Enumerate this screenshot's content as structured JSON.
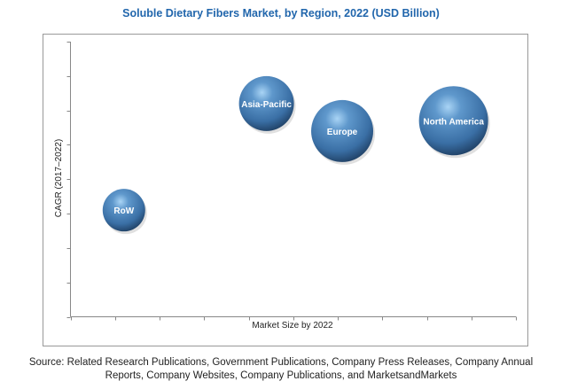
{
  "chart_data": {
    "type": "scatter",
    "subtype": "bubble",
    "title": "Soluble Dietary Fibers Market, by Region, 2022 (USD Billion)",
    "xlabel": "Market Size by 2022",
    "ylabel": "CAGR (2017–2022)",
    "xlim": [
      0,
      10
    ],
    "ylim": [
      0,
      8
    ],
    "x_ticks": 10,
    "y_ticks": 8,
    "grid": false,
    "legend": "none",
    "bubble_color": "#3a6fa5",
    "points": [
      {
        "label": "RoW",
        "x": 1.2,
        "y": 3.1,
        "size": 24
      },
      {
        "label": "Asia-Pacific",
        "x": 4.4,
        "y": 6.2,
        "size": 31
      },
      {
        "label": "Europe",
        "x": 6.1,
        "y": 5.4,
        "size": 35
      },
      {
        "label": "North America",
        "x": 8.6,
        "y": 5.7,
        "size": 39
      }
    ]
  },
  "source": {
    "line1": "Source: Related Research Publications, Government Publications, Company Press Releases, Company Annual",
    "line2": "Reports, Company Websites, Company Publications, and MarketsandMarkets"
  }
}
